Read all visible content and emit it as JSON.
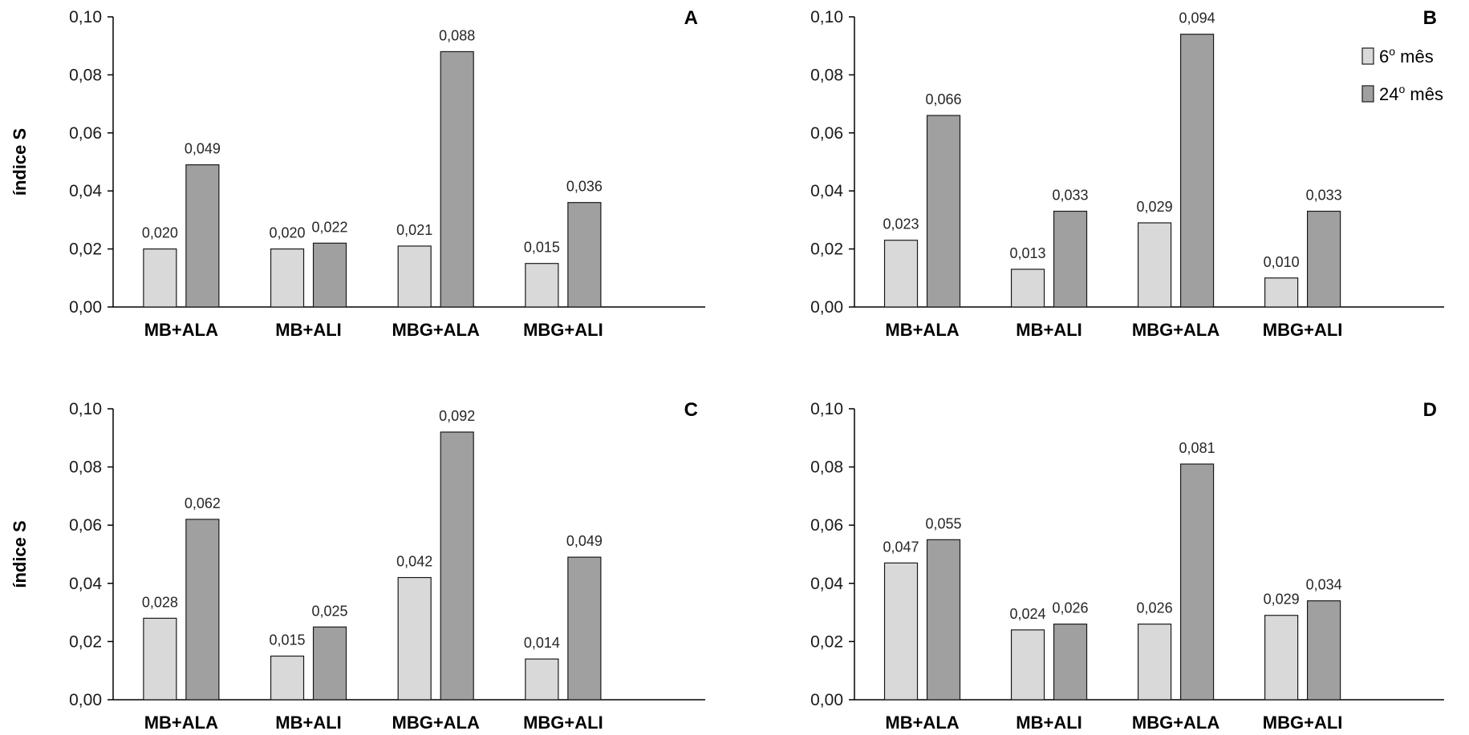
{
  "chart_data": [
    {
      "type": "bar",
      "panel_label": "A",
      "ylabel": "índice S",
      "ylim": [
        0,
        0.1
      ],
      "yticks": [
        "0,00",
        "0,02",
        "0,04",
        "0,06",
        "0,08",
        "0,10"
      ],
      "categories": [
        "MB+ALA",
        "MB+ALI",
        "MBG+ALA",
        "MBG+ALI"
      ],
      "series": [
        {
          "name": "6º mês",
          "values": [
            0.02,
            0.02,
            0.021,
            0.015
          ],
          "labels": [
            "0,020",
            "0,020",
            "0,021",
            "0,015"
          ]
        },
        {
          "name": "24º mês",
          "values": [
            0.049,
            0.022,
            0.088,
            0.036
          ],
          "labels": [
            "0,049",
            "0,022",
            "0,088",
            "0,036"
          ]
        }
      ]
    },
    {
      "type": "bar",
      "panel_label": "B",
      "ylabel": "",
      "ylim": [
        0,
        0.1
      ],
      "yticks": [
        "0,00",
        "0,02",
        "0,04",
        "0,06",
        "0,08",
        "0,10"
      ],
      "categories": [
        "MB+ALA",
        "MB+ALI",
        "MBG+ALA",
        "MBG+ALI"
      ],
      "series": [
        {
          "name": "6º mês",
          "values": [
            0.023,
            0.013,
            0.029,
            0.01
          ],
          "labels": [
            "0,023",
            "0,013",
            "0,029",
            "0,010"
          ]
        },
        {
          "name": "24º mês",
          "values": [
            0.066,
            0.033,
            0.094,
            0.033
          ],
          "labels": [
            "0,066",
            "0,033",
            "0,094",
            "0,033"
          ]
        }
      ],
      "legend": {
        "position": "top-right",
        "items": [
          "6",
          "24"
        ],
        "suffix": "mês",
        "sup": "o"
      }
    },
    {
      "type": "bar",
      "panel_label": "C",
      "ylabel": "índice S",
      "ylim": [
        0,
        0.1
      ],
      "yticks": [
        "0,00",
        "0,02",
        "0,04",
        "0,06",
        "0,08",
        "0,10"
      ],
      "categories": [
        "MB+ALA",
        "MB+ALI",
        "MBG+ALA",
        "MBG+ALI"
      ],
      "series": [
        {
          "name": "6º mês",
          "values": [
            0.028,
            0.015,
            0.042,
            0.014
          ],
          "labels": [
            "0,028",
            "0,015",
            "0,042",
            "0,014"
          ]
        },
        {
          "name": "24º mês",
          "values": [
            0.062,
            0.025,
            0.092,
            0.049
          ],
          "labels": [
            "0,062",
            "0,025",
            "0,092",
            "0,049"
          ]
        }
      ]
    },
    {
      "type": "bar",
      "panel_label": "D",
      "ylabel": "",
      "ylim": [
        0,
        0.1
      ],
      "yticks": [
        "0,00",
        "0,02",
        "0,04",
        "0,06",
        "0,08",
        "0,10"
      ],
      "categories": [
        "MB+ALA",
        "MB+ALI",
        "MBG+ALA",
        "MBG+ALI"
      ],
      "series": [
        {
          "name": "6º mês",
          "values": [
            0.047,
            0.024,
            0.026,
            0.029
          ],
          "labels": [
            "0,047",
            "0,024",
            "0,026",
            "0,029"
          ]
        },
        {
          "name": "24º mês",
          "values": [
            0.055,
            0.026,
            0.081,
            0.034
          ],
          "labels": [
            "0,055",
            "0,026",
            "0,081",
            "0,034"
          ]
        }
      ]
    }
  ],
  "colors": {
    "series_6": "#d9d9d9",
    "series_24": "#a0a0a0",
    "bar_stroke": "#1a1a1a",
    "axis": "#000000"
  }
}
